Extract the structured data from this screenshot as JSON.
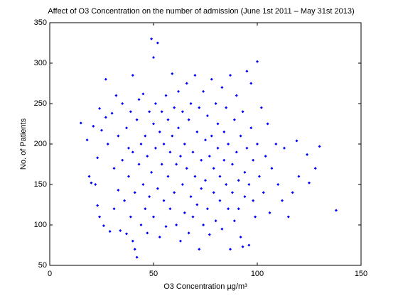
{
  "chart_data": {
    "type": "scatter",
    "title": "Affect of O3 Concentration on the number of admission (June 1st 2011 – May 31st 2013)",
    "xlabel": "O3 Concentration µg/m³",
    "ylabel": "No. of Patients",
    "color": "#0000ff",
    "xlim": [
      0,
      150
    ],
    "xticks": [
      0,
      50,
      100,
      150
    ],
    "ylim": [
      50,
      350
    ],
    "yticks": [
      50,
      100,
      150,
      200,
      250,
      300,
      350
    ],
    "grid": false,
    "x": [
      15,
      18,
      19,
      20,
      21,
      22,
      23,
      23,
      24,
      24,
      25,
      26,
      27,
      27,
      28,
      29,
      30,
      31,
      31,
      32,
      33,
      33,
      34,
      35,
      35,
      36,
      37,
      37,
      38,
      38,
      39,
      39,
      40,
      40,
      40,
      41,
      41,
      42,
      42,
      43,
      43,
      44,
      44,
      45,
      45,
      46,
      46,
      47,
      47,
      48,
      48,
      49,
      49,
      50,
      50,
      50,
      51,
      51,
      52,
      52,
      53,
      53,
      54,
      54,
      55,
      55,
      56,
      56,
      57,
      57,
      58,
      58,
      59,
      59,
      60,
      60,
      61,
      61,
      62,
      62,
      63,
      63,
      64,
      64,
      65,
      65,
      66,
      66,
      67,
      67,
      68,
      68,
      69,
      69,
      70,
      70,
      71,
      71,
      72,
      72,
      73,
      73,
      74,
      74,
      75,
      75,
      76,
      76,
      77,
      77,
      78,
      78,
      79,
      79,
      80,
      80,
      81,
      81,
      82,
      82,
      83,
      83,
      84,
      84,
      85,
      85,
      86,
      86,
      87,
      87,
      88,
      88,
      89,
      89,
      90,
      90,
      91,
      91,
      92,
      92,
      93,
      93,
      94,
      94,
      95,
      95,
      96,
      96,
      97,
      97,
      98,
      98,
      99,
      100,
      100,
      101,
      102,
      103,
      104,
      105,
      106,
      107,
      109,
      110,
      112,
      113,
      115,
      117,
      119,
      120,
      124,
      125,
      128,
      130,
      138
    ],
    "values": [
      226,
      205,
      160,
      152,
      222,
      150,
      124,
      183,
      244,
      110,
      217,
      99,
      280,
      233,
      200,
      92,
      238,
      120,
      170,
      260,
      143,
      210,
      93,
      250,
      180,
      130,
      89,
      220,
      160,
      195,
      110,
      240,
      80,
      285,
      190,
      140,
      70,
      60,
      230,
      255,
      175,
      100,
      200,
      150,
      262,
      120,
      210,
      185,
      90,
      240,
      135,
      330,
      165,
      307,
      225,
      110,
      195,
      250,
      325,
      145,
      85,
      215,
      240,
      175,
      130,
      200,
      98,
      260,
      230,
      160,
      190,
      120,
      287,
      210,
      245,
      140,
      175,
      100,
      265,
      220,
      185,
      80,
      150,
      240,
      115,
      200,
      275,
      170,
      230,
      90,
      135,
      250,
      190,
      110,
      285,
      160,
      215,
      125,
      70,
      245,
      180,
      145,
      265,
      100,
      205,
      155,
      235,
      120,
      185,
      88,
      280,
      210,
      140,
      170,
      250,
      105,
      195,
      225,
      130,
      160,
      270,
      95,
      215,
      180,
      150,
      245,
      120,
      200,
      70,
      285,
      175,
      140,
      230,
      105,
      190,
      260,
      155,
      120,
      210,
      85,
      73,
      240,
      165,
      135,
      290,
      195,
      75,
      150,
      275,
      220,
      180,
      130,
      110,
      302,
      200,
      160,
      245,
      140,
      185,
      225,
      115,
      170,
      200,
      150,
      130,
      195,
      110,
      140,
      204,
      160,
      187,
      152,
      170,
      197,
      118
    ]
  }
}
